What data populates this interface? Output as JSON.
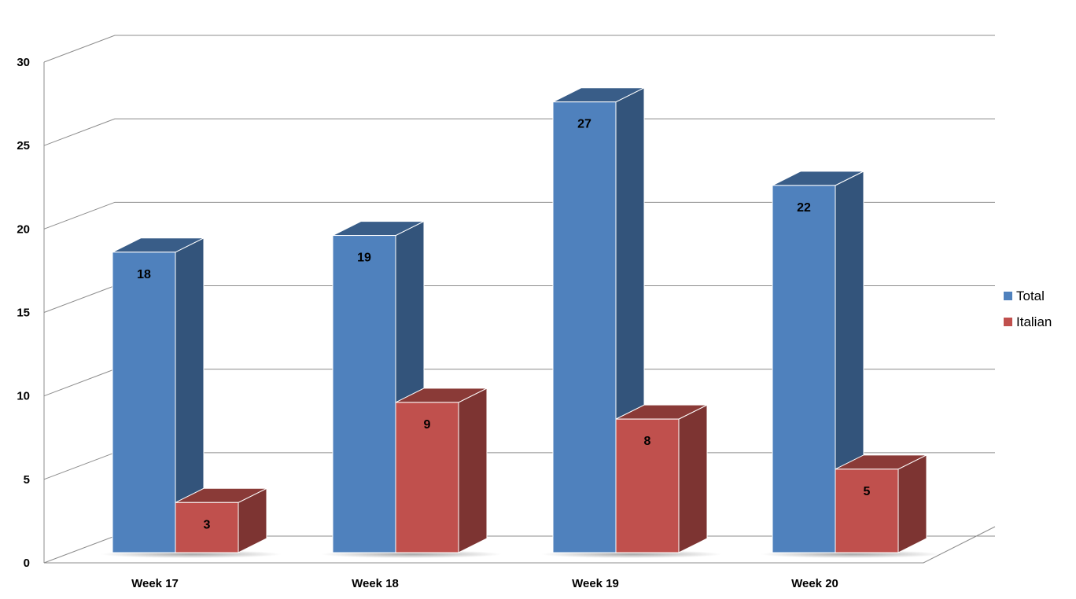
{
  "chart_data": {
    "type": "bar",
    "style": "3d-clustered-column",
    "categories": [
      "Week 17",
      "Week 18",
      "Week 19",
      "Week 20"
    ],
    "series": [
      {
        "name": "Total",
        "values": [
          18,
          19,
          27,
          22
        ],
        "color": "#4F81BD"
      },
      {
        "name": "Italian",
        "values": [
          3,
          9,
          8,
          5
        ],
        "color": "#C0504D"
      }
    ],
    "ylim": [
      0,
      30
    ],
    "yticks": [
      "0",
      "5",
      "10",
      "15",
      "20",
      "25",
      "30"
    ],
    "grid": true,
    "legend": "right",
    "data_labels": true
  }
}
